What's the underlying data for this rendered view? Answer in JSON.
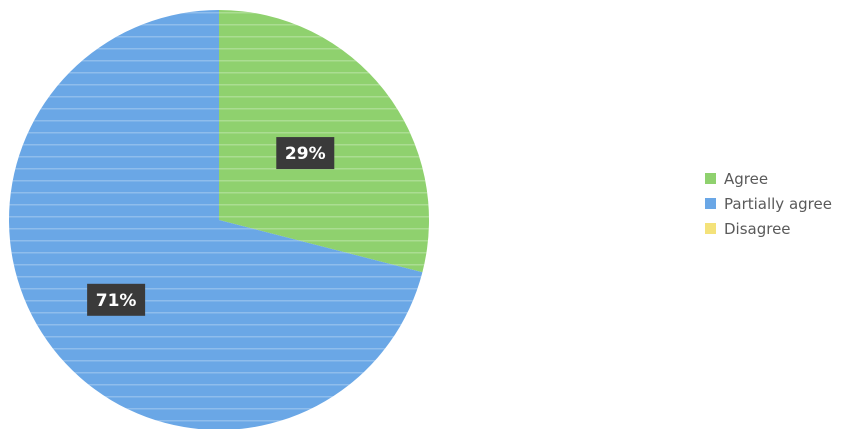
{
  "chart_data": {
    "type": "pie",
    "categories": [
      "Agree",
      "Partially agree",
      "Disagree"
    ],
    "values": [
      29,
      71,
      0
    ],
    "data_labels": [
      "29%",
      "71%",
      ""
    ],
    "colors": [
      "#8fd16e",
      "#6aa7e6",
      "#f4e27a"
    ],
    "start_angle_deg": 0,
    "direction": "clockwise",
    "legend_position": "right"
  }
}
